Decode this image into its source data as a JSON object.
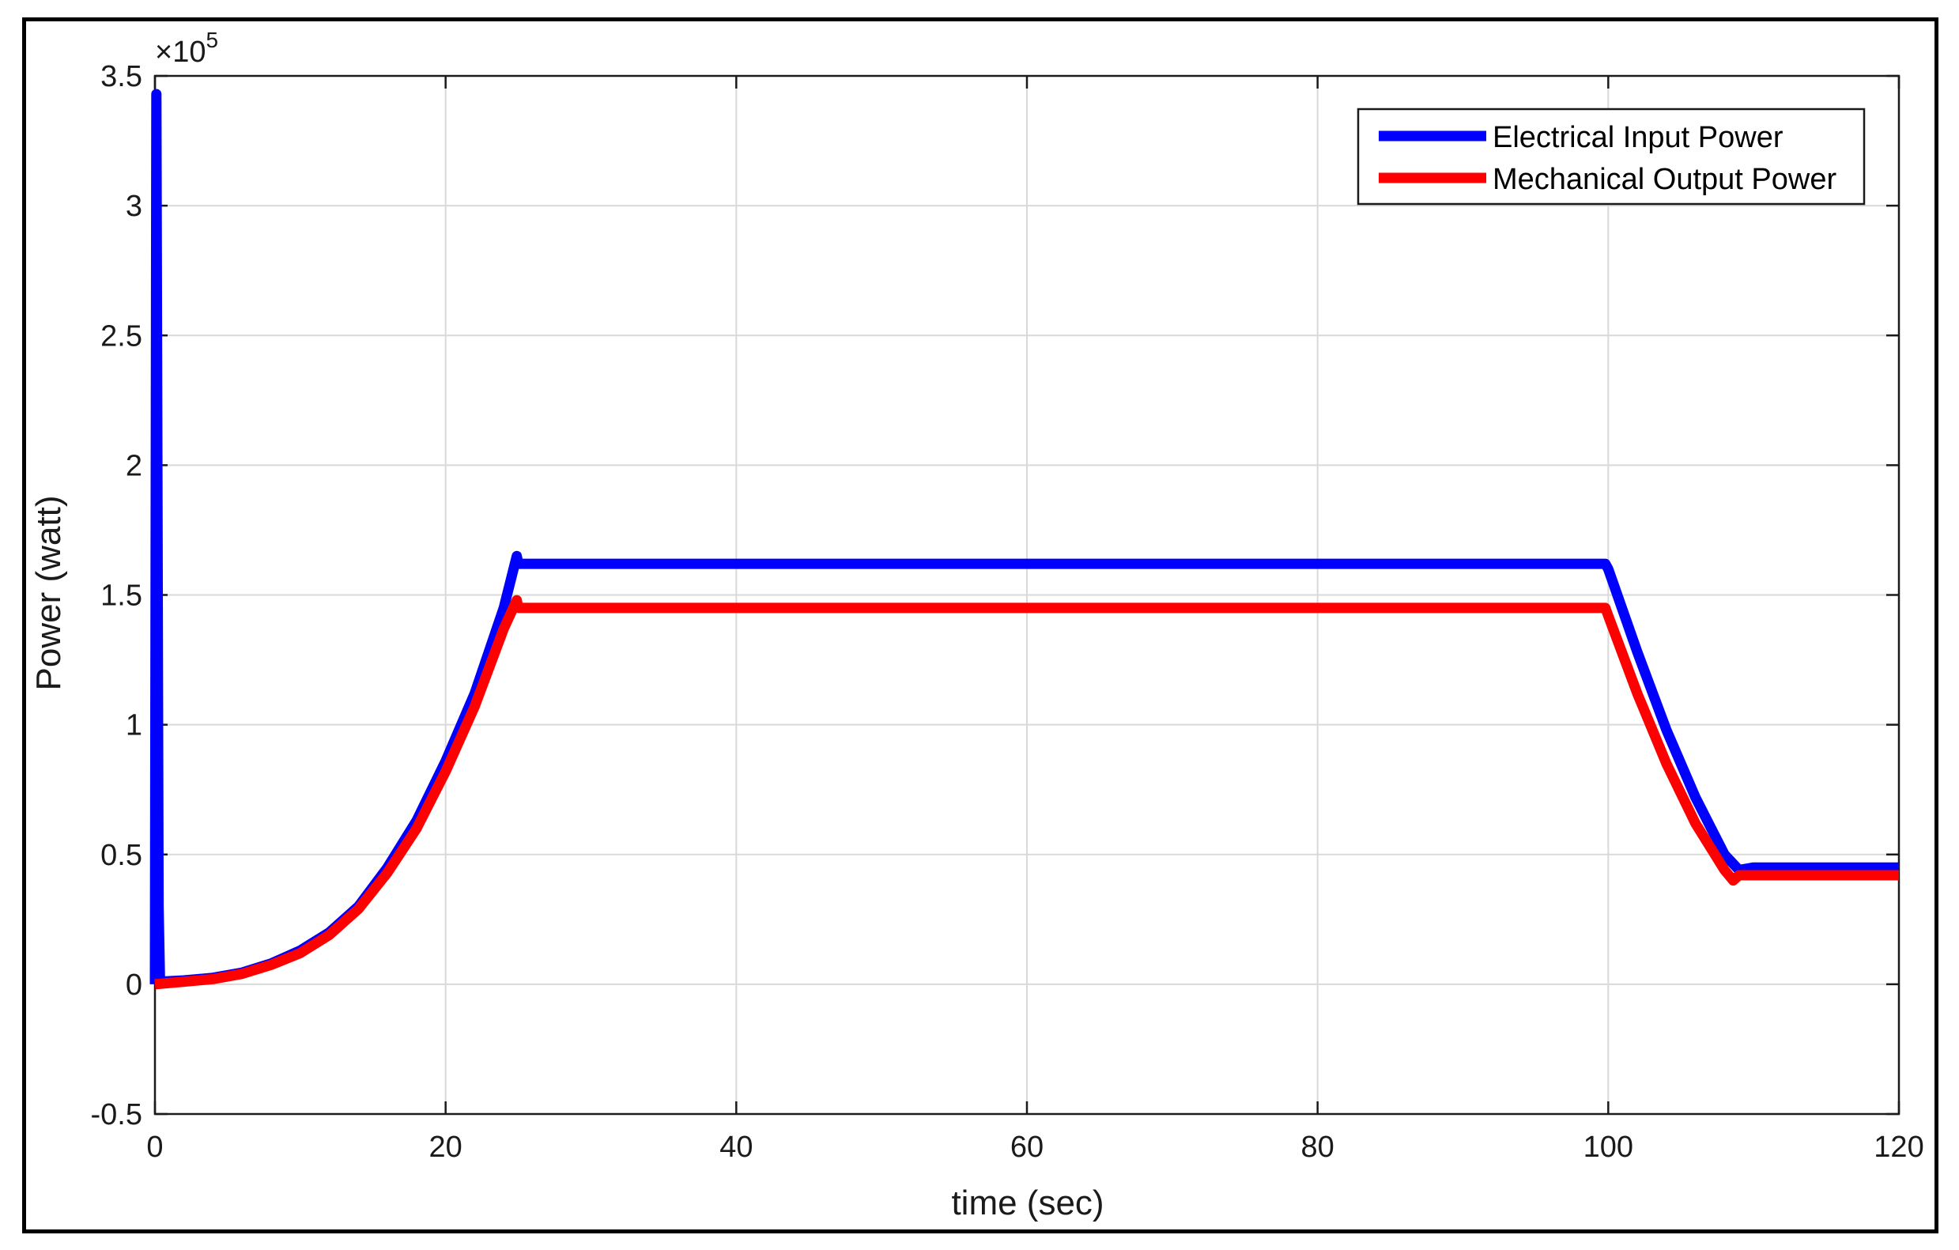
{
  "chart_data": {
    "type": "line",
    "xlabel": "time (sec)",
    "ylabel": "Power (watt)",
    "y_exponent_label": "×10",
    "y_exponent_power": "5",
    "xlim": [
      0,
      120
    ],
    "ylim": [
      -0.5,
      3.5
    ],
    "y_scale_note": "values in units of 10^5 watt",
    "xticks": [
      0,
      20,
      40,
      60,
      80,
      100,
      120
    ],
    "yticks": [
      -0.5,
      0,
      0.5,
      1,
      1.5,
      2,
      2.5,
      3,
      3.5
    ],
    "xtick_labels": [
      "0",
      "20",
      "40",
      "60",
      "80",
      "100",
      "120"
    ],
    "ytick_labels": [
      "-0.5",
      "0",
      "0.5",
      "1",
      "1.5",
      "2",
      "2.5",
      "3",
      "3.5"
    ],
    "grid": true,
    "legend_position": "top-right",
    "series": [
      {
        "name": "Electrical Input Power",
        "color": "#0000ff",
        "points": [
          [
            0,
            0
          ],
          [
            0.1,
            3.43
          ],
          [
            0.25,
            0.3
          ],
          [
            0.35,
            0.01
          ],
          [
            2,
            0.015
          ],
          [
            4,
            0.025
          ],
          [
            6,
            0.045
          ],
          [
            8,
            0.08
          ],
          [
            10,
            0.13
          ],
          [
            12,
            0.2
          ],
          [
            14,
            0.3
          ],
          [
            16,
            0.45
          ],
          [
            18,
            0.63
          ],
          [
            20,
            0.86
          ],
          [
            22,
            1.12
          ],
          [
            24,
            1.45
          ],
          [
            24.9,
            1.65
          ],
          [
            25,
            1.62
          ],
          [
            40,
            1.62
          ],
          [
            60,
            1.62
          ],
          [
            80,
            1.62
          ],
          [
            99.8,
            1.62
          ],
          [
            100,
            1.6
          ],
          [
            102,
            1.28
          ],
          [
            104,
            0.98
          ],
          [
            106,
            0.72
          ],
          [
            108,
            0.5
          ],
          [
            109,
            0.44
          ],
          [
            110,
            0.45
          ],
          [
            120,
            0.45
          ]
        ]
      },
      {
        "name": "Mechanical Output Power",
        "color": "#ff0000",
        "points": [
          [
            0,
            0
          ],
          [
            2,
            0.01
          ],
          [
            4,
            0.02
          ],
          [
            6,
            0.04
          ],
          [
            8,
            0.075
          ],
          [
            10,
            0.12
          ],
          [
            12,
            0.19
          ],
          [
            14,
            0.29
          ],
          [
            16,
            0.43
          ],
          [
            18,
            0.6
          ],
          [
            20,
            0.82
          ],
          [
            22,
            1.07
          ],
          [
            24,
            1.37
          ],
          [
            24.9,
            1.48
          ],
          [
            25,
            1.45
          ],
          [
            40,
            1.45
          ],
          [
            60,
            1.45
          ],
          [
            80,
            1.45
          ],
          [
            99.8,
            1.45
          ],
          [
            100,
            1.42
          ],
          [
            102,
            1.12
          ],
          [
            104,
            0.85
          ],
          [
            106,
            0.62
          ],
          [
            108,
            0.44
          ],
          [
            108.6,
            0.4
          ],
          [
            109,
            0.42
          ],
          [
            120,
            0.42
          ]
        ]
      }
    ]
  }
}
